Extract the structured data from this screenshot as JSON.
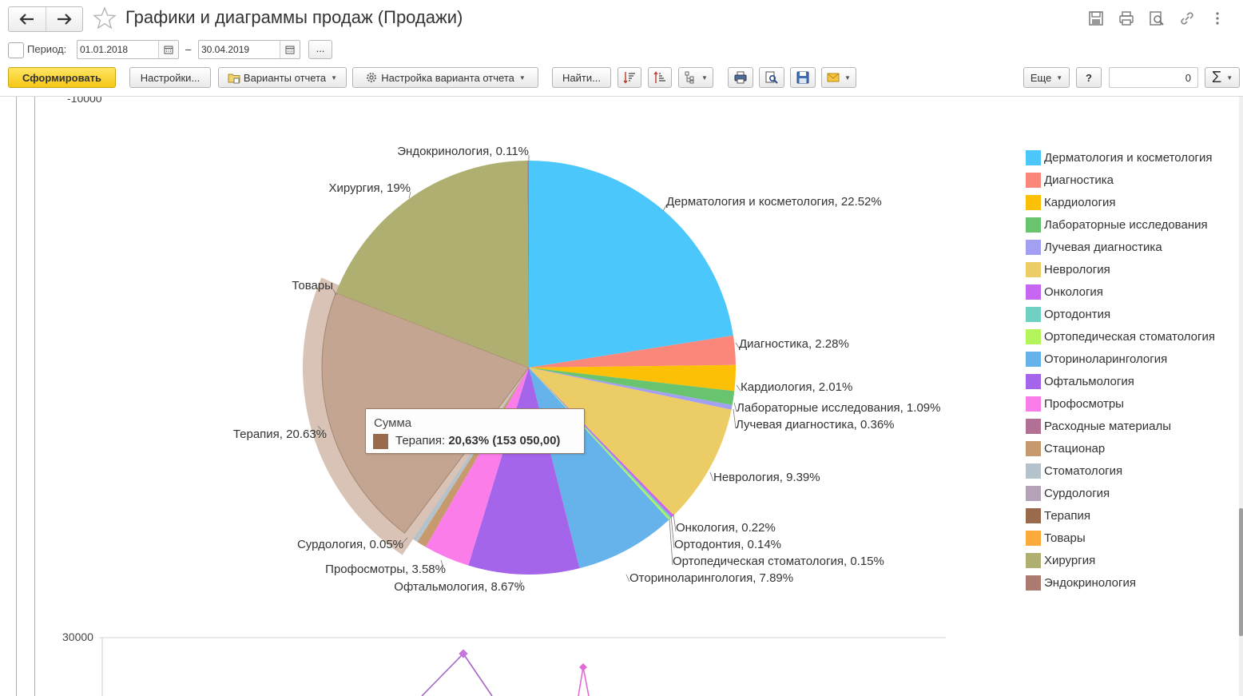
{
  "window": {
    "title": "Графики и диаграммы продаж (Продажи)"
  },
  "period": {
    "label": "Период:",
    "from": "01.01.2018",
    "dash": "–",
    "to": "30.04.2019",
    "more_label": "..."
  },
  "toolbar": {
    "generate": "Сформировать",
    "settings": "Настройки...",
    "variants": "Варианты отчета",
    "variant_settings": "Настройка варианта отчета",
    "find": "Найти...",
    "more": "Еще",
    "help": "?",
    "sum_value": "0",
    "sum_symbol": "Σ"
  },
  "report": {
    "top_axis_label": "-10000",
    "bottom_axis_label": "30000"
  },
  "tooltip": {
    "title": "Сумма",
    "label": "Терапия: ",
    "value": "20,63% (153 050,00)",
    "color": "#9a6a4c"
  },
  "chart_data": {
    "type": "pie",
    "slices": [
      {
        "name": "Дерматология и косметология",
        "percent": 22.52,
        "label": "Дерматология и косметология, 22.52%",
        "color": "#4cc7fb"
      },
      {
        "name": "Диагностика",
        "percent": 2.28,
        "label": "Диагностика, 2.28%",
        "color": "#fb877a"
      },
      {
        "name": "Кардиология",
        "percent": 2.01,
        "label": "Кардиология, 2.01%",
        "color": "#fcc006"
      },
      {
        "name": "Лабораторные исследования",
        "percent": 1.09,
        "label": "Лабораторные исследования, 1.09%",
        "color": "#68c46f"
      },
      {
        "name": "Лучевая диагностика",
        "percent": 0.36,
        "label": "Лучевая диагностика, 0.36%",
        "color": "#a39ff3"
      },
      {
        "name": "Неврология",
        "percent": 9.39,
        "label": "Неврология, 9.39%",
        "color": "#eccc65"
      },
      {
        "name": "Онкология",
        "percent": 0.22,
        "label": "Онкология, 0.22%",
        "color": "#c666f2"
      },
      {
        "name": "Ортодонтия",
        "percent": 0.14,
        "label": "Ортодонтия, 0.14%",
        "color": "#6ed1c4"
      },
      {
        "name": "Ортопедическая стоматология",
        "percent": 0.15,
        "label": "Ортопедическая стоматология, 0.15%",
        "color": "#b3f55a"
      },
      {
        "name": "Оториноларингология",
        "percent": 7.89,
        "label": "Оториноларингология, 7.89%",
        "color": "#66b2ea"
      },
      {
        "name": "Офтальмология",
        "percent": 8.67,
        "label": "Офтальмология, 8.67%",
        "color": "#a565ea"
      },
      {
        "name": "Профосмотры",
        "percent": 3.58,
        "label": "Профосмотры, 3.58%",
        "color": "#fb7de9"
      },
      {
        "name": "Расходные материалы",
        "percent": 0.0,
        "label": "",
        "color": "#b27094"
      },
      {
        "name": "Стационар",
        "percent": 0.75,
        "label": "",
        "color": "#c69a6d"
      },
      {
        "name": "Стоматология",
        "percent": 1.14,
        "label": "",
        "color": "#b4c2cb"
      },
      {
        "name": "Сурдология",
        "percent": 0.05,
        "label": "Сурдология, 0.05%",
        "color": "#b4a2b8"
      },
      {
        "name": "Терапия",
        "percent": 20.63,
        "label": "Терапия, 20.63%",
        "color": "#c4a592",
        "exploded": true
      },
      {
        "name": "Товары",
        "percent": 0.01,
        "label": "Товары",
        "color": "#fcaa3c"
      },
      {
        "name": "Хирургия",
        "percent": 19.0,
        "label": "Хирургия, 19%",
        "color": "#afaf71"
      },
      {
        "name": "Эндокринология",
        "percent": 0.11,
        "label": "Эндокринология, 0.11%",
        "color": "#ab7a70"
      }
    ],
    "legend_position": "right",
    "legend": [
      {
        "label": "Дерматология и косметология",
        "color": "#4cc7fb"
      },
      {
        "label": "Диагностика",
        "color": "#fb877a"
      },
      {
        "label": "Кардиология",
        "color": "#fcc006"
      },
      {
        "label": "Лабораторные исследования",
        "color": "#68c46f"
      },
      {
        "label": "Лучевая диагностика",
        "color": "#a39ff3"
      },
      {
        "label": "Неврология",
        "color": "#eccc65"
      },
      {
        "label": "Онкология",
        "color": "#c666f2"
      },
      {
        "label": "Ортодонтия",
        "color": "#6ed1c4"
      },
      {
        "label": "Ортопедическая стоматология",
        "color": "#b3f55a"
      },
      {
        "label": "Оториноларингология",
        "color": "#66b2ea"
      },
      {
        "label": "Офтальмология",
        "color": "#a565ea"
      },
      {
        "label": "Профосмотры",
        "color": "#fb7de9"
      },
      {
        "label": "Расходные материалы",
        "color": "#b27094"
      },
      {
        "label": "Стационар",
        "color": "#c69a6d"
      },
      {
        "label": "Стоматология",
        "color": "#b4c2cb"
      },
      {
        "label": "Сурдология",
        "color": "#b4a2b8"
      },
      {
        "label": "Терапия",
        "color": "#9a6a4c"
      },
      {
        "label": "Товары",
        "color": "#fcaa3c"
      },
      {
        "label": "Хирургия",
        "color": "#afaf71"
      },
      {
        "label": "Эндокринология",
        "color": "#ab7a70"
      }
    ]
  }
}
